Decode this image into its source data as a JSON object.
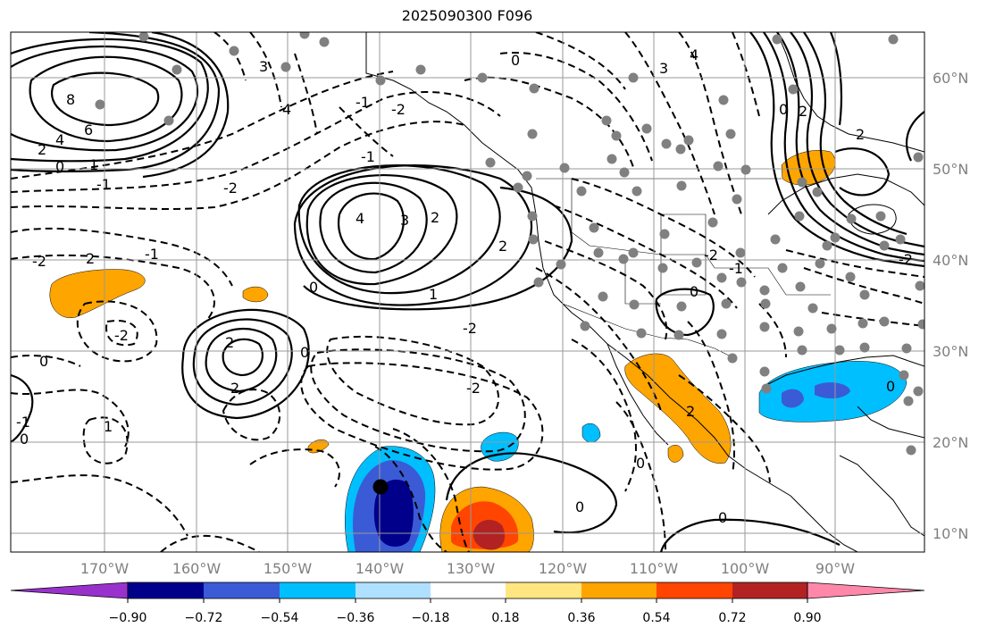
{
  "title": "2025090300 F096",
  "lon_labels": [
    "170°W",
    "160°W",
    "150°W",
    "140°W",
    "130°W",
    "120°W",
    "110°W",
    "100°W",
    "90°W"
  ],
  "lat_labels": [
    "60°N",
    "50°N",
    "40°N",
    "30°N",
    "20°N",
    "10°N"
  ],
  "colorbar": {
    "ticks": [
      "−0.90",
      "−0.72",
      "−0.54",
      "−0.36",
      "−0.18",
      "0.18",
      "0.36",
      "0.54",
      "0.72",
      "0.90"
    ],
    "colors": [
      "#9932cc",
      "#00008b",
      "#3b5bd6",
      "#00bfff",
      "#b0e0ff",
      "#ffffff",
      "#ffe680",
      "#ffa500",
      "#ff4500",
      "#b22222",
      "#ff88aa"
    ]
  },
  "contour_labels": [
    "8",
    "6",
    "4",
    "2",
    "0",
    "1",
    "-1",
    "2",
    "-2",
    "4",
    "3",
    "2",
    "1",
    "0",
    "2",
    "2",
    "-2",
    "0",
    "-1",
    "2",
    "-2",
    "0",
    "0",
    "0",
    "3",
    "4",
    "0",
    "-2",
    "0",
    "3",
    "4",
    "2",
    "0",
    "-1",
    "-2",
    "2",
    "0",
    "-1",
    "-2",
    "-1",
    "-2",
    "1",
    "2",
    "0",
    "0",
    "-1",
    "-2"
  ]
}
